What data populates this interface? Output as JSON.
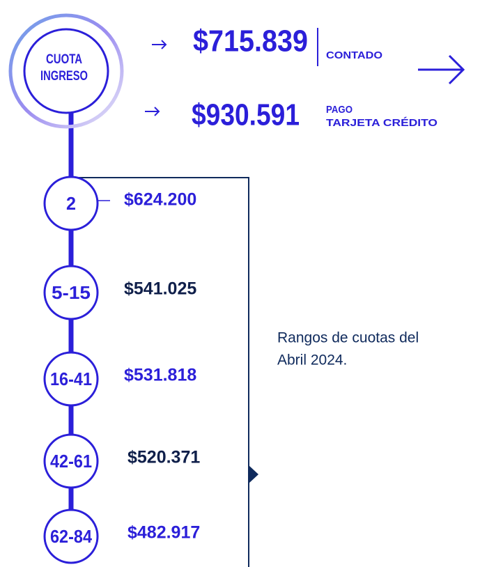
{
  "header": {
    "label": [
      "CUOTA",
      "INGRESO"
    ],
    "cash": {
      "price": "$715.839",
      "label": "CONTADO"
    },
    "credit": {
      "price": "$930.591",
      "label": [
        "PAGO",
        "TARJETA CRÉDITO"
      ]
    }
  },
  "ranges": [
    {
      "label": "2",
      "price": "$624.200"
    },
    {
      "label": "5-15",
      "price": "$541.025"
    },
    {
      "label": "16-41",
      "price": "$531.818"
    },
    {
      "label": "42-61",
      "price": "$520.371"
    },
    {
      "label": "62-84",
      "price": "$482.917"
    }
  ],
  "note": [
    "Rangos de cuotas del",
    "Abril  2024."
  ]
}
